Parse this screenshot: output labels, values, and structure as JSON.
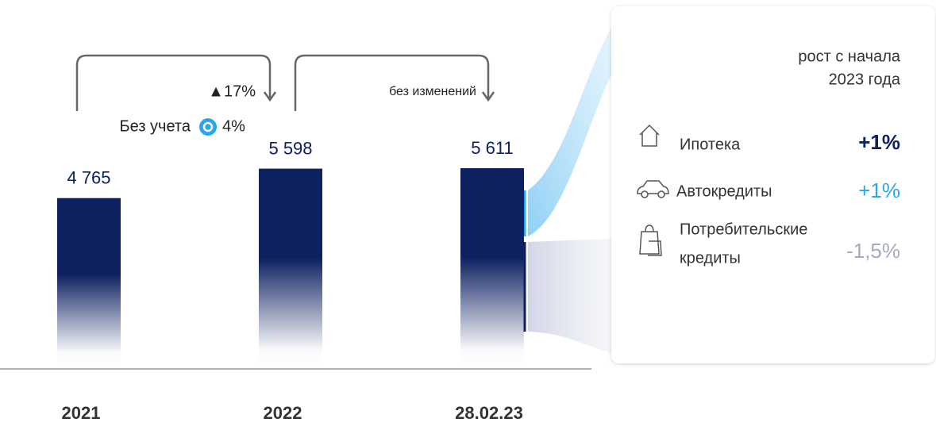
{
  "chart_data": {
    "type": "bar",
    "categories": [
      "2021",
      "2022",
      "28.02.23"
    ],
    "values": [
      4765,
      5598,
      5611
    ],
    "value_labels": [
      "4 765",
      "5 598",
      "5 611"
    ],
    "color": "#0d2060",
    "annotations": [
      "▲17%",
      "Без учета",
      "4%",
      "без изменений"
    ]
  },
  "panel": {
    "title": [
      "рост с начала",
      "2023 года"
    ],
    "items": [
      {
        "name": [
          "Ипотека"
        ],
        "value": 1,
        "label": "+1%",
        "color": "#0d2060"
      },
      {
        "name": [
          "Автокредиты"
        ],
        "value": 1,
        "label": "+1%",
        "color": "#2aa6ef"
      },
      {
        "name": [
          "Потребительские",
          "кредиты"
        ],
        "value": -1.5,
        "label": "-1,5%",
        "color": "#a3a9c6"
      }
    ]
  }
}
